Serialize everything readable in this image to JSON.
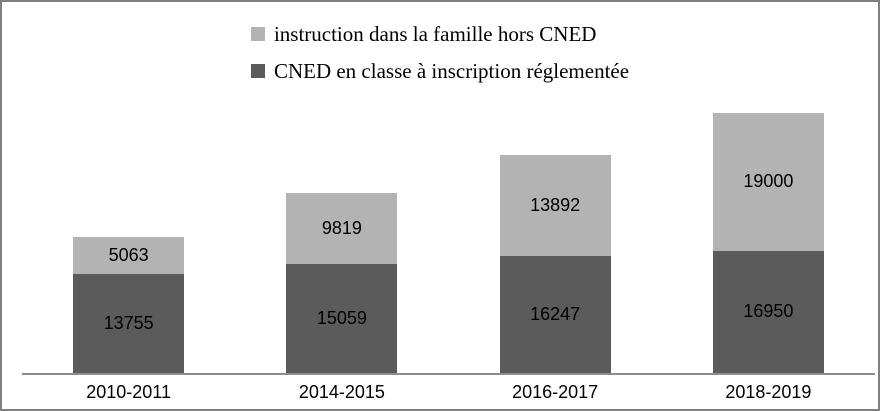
{
  "frame": {
    "background": "#FFFFFF",
    "border_color": "#808080",
    "axis_color": "#8C8C8C"
  },
  "chart_data": {
    "type": "bar",
    "stacked": true,
    "categories": [
      "2010-2011",
      "2014-2015",
      "2016-2017",
      "2018-2019"
    ],
    "series": [
      {
        "name": "CNED en classe à inscription réglementée",
        "color": "#5B5B5B",
        "values": [
          13755,
          15059,
          16247,
          16950
        ]
      },
      {
        "name": "instruction dans la famille hors CNED",
        "color": "#B3B3B3",
        "values": [
          5063,
          9819,
          13892,
          19000
        ]
      }
    ],
    "ylim": [
      0,
      40000
    ],
    "grid": false,
    "y_axis_visible": false,
    "legend_position": "top-center",
    "value_labels": "inside-center"
  }
}
